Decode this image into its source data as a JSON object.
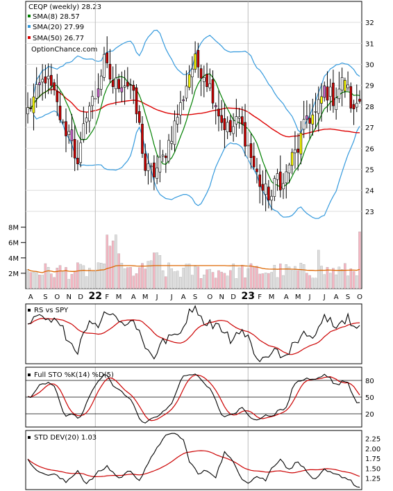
{
  "chart_data": [
    {
      "panel": "price",
      "type": "candlestick",
      "symbol": "CEQP",
      "title_text": "CEQP (weekly) 28.23",
      "legend": [
        {
          "label": "SMA(8) 28.57",
          "color": "#008000"
        },
        {
          "label": "SMA(20) 27.99",
          "color": "#3399dd"
        },
        {
          "label": "SMA(50) 26.77",
          "color": "#dd0000"
        }
      ],
      "watermark": "OptionChance.com",
      "ylim": [
        22,
        33
      ],
      "y_ticks": [
        {
          "v": 23,
          "label": "23"
        },
        {
          "v": 24,
          "label": "24"
        },
        {
          "v": 25,
          "label": "25"
        },
        {
          "v": 26,
          "label": "26"
        },
        {
          "v": 27,
          "label": "27"
        },
        {
          "v": 28,
          "label": "28"
        },
        {
          "v": 29,
          "label": "29"
        },
        {
          "v": 30,
          "label": "30"
        },
        {
          "v": 31,
          "label": "31"
        },
        {
          "v": 32,
          "label": "32"
        }
      ],
      "colors": {
        "up_fill": "#ffffff",
        "down_fill": "#cc0000",
        "purple_fill": "#cc66cc",
        "yellow_fill": "#ffff00",
        "bollinger": "#3399dd",
        "bollinger_alt": "#eeee33"
      },
      "close_anchors": [
        [
          0,
          27.8
        ],
        [
          3,
          28.6
        ],
        [
          6,
          29.4
        ],
        [
          9,
          28.5
        ],
        [
          12,
          27.0
        ],
        [
          15,
          26.6
        ],
        [
          17,
          25.0
        ],
        [
          20,
          27.8
        ],
        [
          23,
          28.5
        ],
        [
          26,
          30.1
        ],
        [
          29,
          29.0
        ],
        [
          32,
          29.2
        ],
        [
          35,
          29.0
        ],
        [
          38,
          27.0
        ],
        [
          40,
          25.0
        ],
        [
          43,
          24.8
        ],
        [
          46,
          25.5
        ],
        [
          49,
          26.7
        ],
        [
          52,
          28.0
        ],
        [
          55,
          29.6
        ],
        [
          57,
          30.1
        ],
        [
          60,
          29.6
        ],
        [
          63,
          28.6
        ],
        [
          66,
          27.3
        ],
        [
          69,
          26.8
        ],
        [
          72,
          27.4
        ],
        [
          75,
          26.1
        ],
        [
          77,
          25.1
        ],
        [
          80,
          24.0
        ],
        [
          83,
          23.7
        ],
        [
          85,
          24.7
        ],
        [
          87,
          24.2
        ],
        [
          89,
          25.3
        ],
        [
          92,
          26.0
        ],
        [
          95,
          27.4
        ],
        [
          98,
          27.6
        ],
        [
          101,
          28.8
        ],
        [
          104,
          28.4
        ],
        [
          107,
          29.1
        ],
        [
          109,
          28.7
        ],
        [
          111,
          27.6
        ],
        [
          112,
          28.23
        ]
      ]
    },
    {
      "panel": "volume",
      "type": "bar",
      "y_ticks": [
        {
          "v": 2,
          "label": "2M"
        },
        {
          "v": 4,
          "label": "4M"
        },
        {
          "v": 6,
          "label": "6M"
        },
        {
          "v": 8,
          "label": "8M"
        }
      ],
      "ylim": [
        0,
        8.6
      ],
      "avg_color": "#dd6600",
      "x_ticks": [
        {
          "i": 1,
          "label": "A"
        },
        {
          "i": 6,
          "label": "S"
        },
        {
          "i": 10,
          "label": "O"
        },
        {
          "i": 14,
          "label": "N"
        },
        {
          "i": 18,
          "label": "D"
        },
        {
          "i": 23,
          "label": "22",
          "major": true
        },
        {
          "i": 27,
          "label": "F"
        },
        {
          "i": 31,
          "label": "M"
        },
        {
          "i": 36,
          "label": "A"
        },
        {
          "i": 40,
          "label": "M"
        },
        {
          "i": 44,
          "label": "J"
        },
        {
          "i": 49,
          "label": "J"
        },
        {
          "i": 53,
          "label": "A"
        },
        {
          "i": 57,
          "label": "S"
        },
        {
          "i": 62,
          "label": "O"
        },
        {
          "i": 66,
          "label": "N"
        },
        {
          "i": 70,
          "label": "D"
        },
        {
          "i": 75,
          "label": "23",
          "major": true
        },
        {
          "i": 79,
          "label": "F"
        },
        {
          "i": 83,
          "label": "M"
        },
        {
          "i": 88,
          "label": "A"
        },
        {
          "i": 92,
          "label": "M"
        },
        {
          "i": 96,
          "label": "J"
        },
        {
          "i": 101,
          "label": "J"
        },
        {
          "i": 105,
          "label": "A"
        },
        {
          "i": 109,
          "label": "S"
        },
        {
          "i": 113,
          "label": "O"
        }
      ]
    },
    {
      "panel": "rs",
      "type": "line",
      "title_text": "RS vs SPY",
      "line_color": "#000000",
      "avg_color": "#cc0000"
    },
    {
      "panel": "sto",
      "type": "line",
      "title_text": "Full STO %K(14) %D(5)",
      "ylim": [
        0,
        100
      ],
      "y_ticks": [
        {
          "v": 20,
          "label": "20"
        },
        {
          "v": 50,
          "label": "50"
        },
        {
          "v": 80,
          "label": "80"
        }
      ],
      "k_color": "#000000",
      "d_color": "#cc0000"
    },
    {
      "panel": "stddev",
      "type": "line",
      "title_text": "STD DEV(20) 1.03",
      "ylim": [
        1.0,
        2.4
      ],
      "y_ticks": [
        {
          "v": 1.25,
          "label": "1.25"
        },
        {
          "v": 1.5,
          "label": "1.50"
        },
        {
          "v": 1.75,
          "label": "1.75"
        },
        {
          "v": 2.0,
          "label": "2.00"
        },
        {
          "v": 2.25,
          "label": "2.25"
        }
      ],
      "anchors": [
        [
          0,
          1.7
        ],
        [
          5,
          1.35
        ],
        [
          9,
          1.35
        ],
        [
          13,
          1.15
        ],
        [
          17,
          1.45
        ],
        [
          20,
          1.1
        ],
        [
          24,
          1.4
        ],
        [
          27,
          1.55
        ],
        [
          31,
          1.25
        ],
        [
          35,
          1.45
        ],
        [
          38,
          1.2
        ],
        [
          41,
          1.6
        ],
        [
          44,
          2.05
        ],
        [
          47,
          2.3
        ],
        [
          50,
          2.4
        ],
        [
          53,
          2.2
        ],
        [
          55,
          1.7
        ],
        [
          58,
          1.35
        ],
        [
          61,
          1.45
        ],
        [
          64,
          1.3
        ],
        [
          67,
          1.9
        ],
        [
          70,
          1.65
        ],
        [
          73,
          1.25
        ],
        [
          75,
          1.15
        ],
        [
          78,
          1.3
        ],
        [
          81,
          1.2
        ],
        [
          83,
          1.5
        ],
        [
          86,
          1.75
        ],
        [
          89,
          1.45
        ],
        [
          92,
          1.7
        ],
        [
          95,
          1.4
        ],
        [
          98,
          1.2
        ],
        [
          101,
          1.45
        ],
        [
          104,
          1.35
        ],
        [
          107,
          1.3
        ],
        [
          110,
          1.2
        ],
        [
          112,
          1.03
        ]
      ],
      "line_color": "#000000",
      "avg_color": "#cc0000"
    }
  ]
}
